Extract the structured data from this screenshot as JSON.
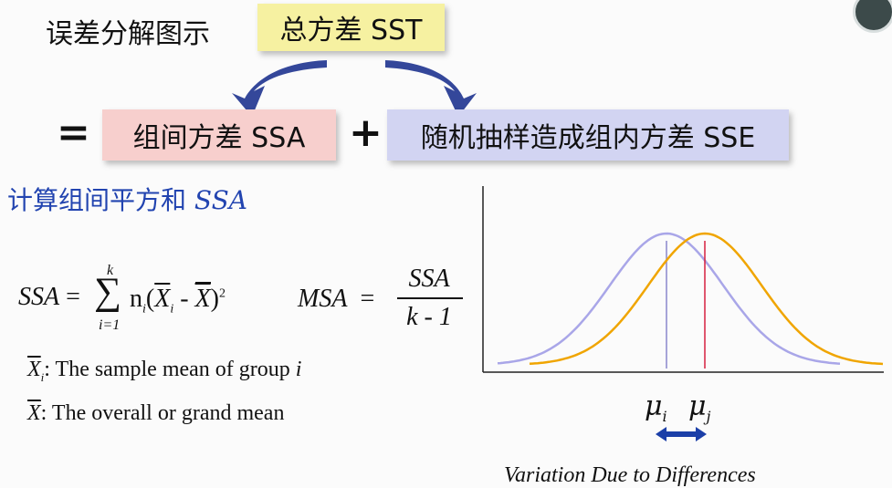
{
  "title": "误差分解图示",
  "boxes": {
    "sst": "总方差 SST",
    "ssa": "组间方差 SSA",
    "sse": "随机抽样造成组内方差 SSE"
  },
  "operators": {
    "equals": "=",
    "plus": "+"
  },
  "section": {
    "heading": "计算组间平方和",
    "heading_symbol": "SSA"
  },
  "formula": {
    "lhs": "SSA",
    "upper": "k",
    "lower": "i=1",
    "term_n": "n",
    "term_i": "i",
    "power": "2",
    "msa_label": "MSA",
    "msa_num": "SSA",
    "msa_den": "k - 1"
  },
  "notes": [
    {
      "symbol_sub": "i",
      "text": ": The sample mean of group ",
      "italic": "i"
    },
    {
      "text": ":  The overall or grand mean"
    }
  ],
  "chart_data": {
    "type": "line",
    "series": [
      {
        "color": "#a9a6e8",
        "mean_marker_color": "#8a88cc"
      },
      {
        "color": "#f0a500",
        "mean_marker_color": "#d61f3f"
      }
    ]
  },
  "mu_labels": {
    "left_sub": "i",
    "right_sub": "j"
  },
  "caption": "Variation Due to Differences",
  "colors": {
    "arrow": "#34479a",
    "double_arrow": "#1b3fa8"
  }
}
